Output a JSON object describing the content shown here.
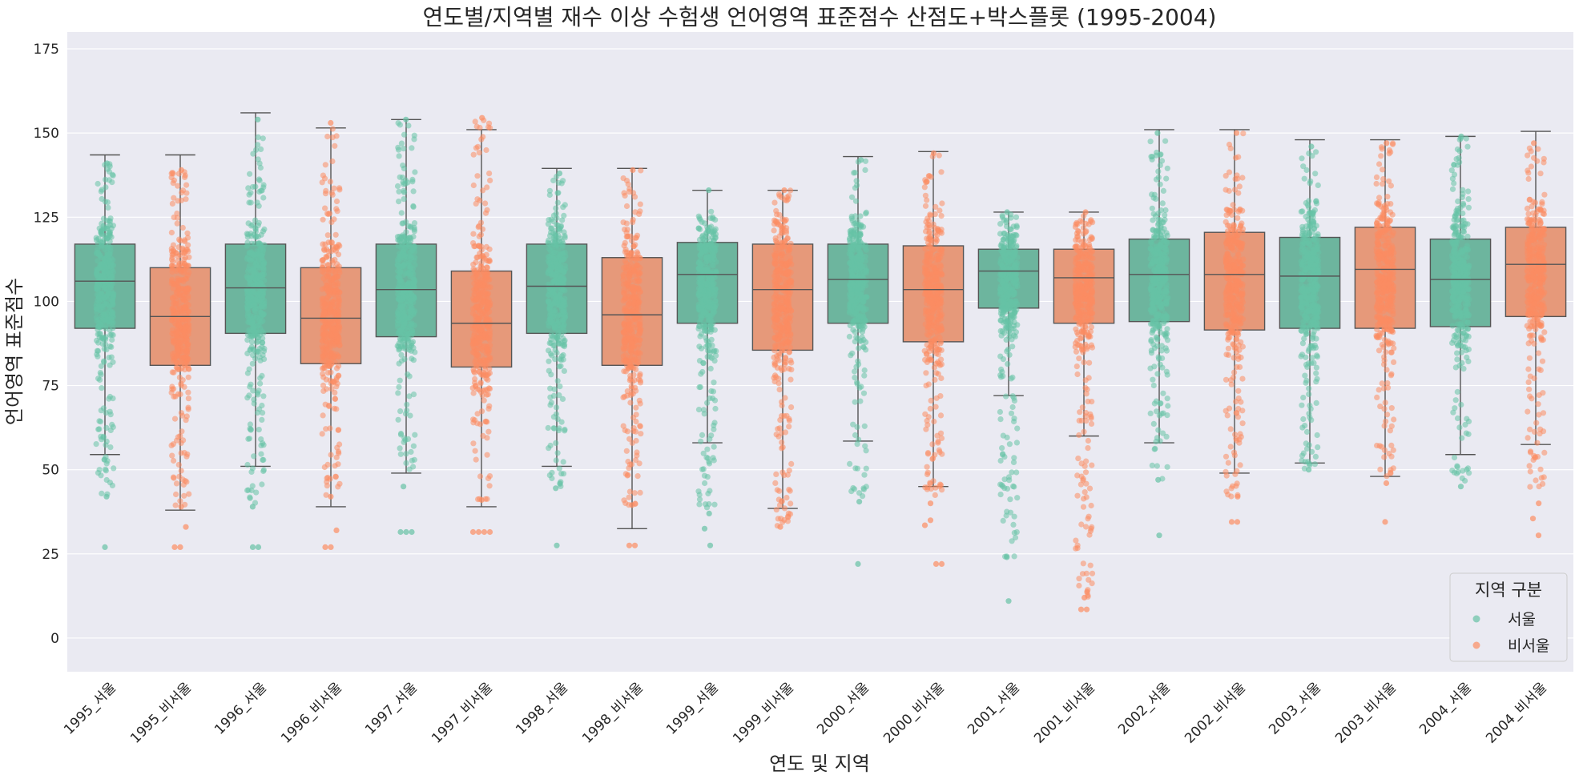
{
  "chart_data": {
    "type": "box+strip",
    "title": "연도별/지역별 재수 이상 수험생 언어영역 표준점수 산점도+박스플롯 (1995-2004)",
    "xlabel": "연도 및 지역",
    "ylabel": "언어영역 표준점수",
    "ylim": [
      -10,
      180
    ],
    "yticks": [
      0,
      25,
      50,
      75,
      100,
      125,
      150,
      175
    ],
    "grid": true,
    "legend": {
      "title": "지역 구분",
      "placement": "bottom-right",
      "entries": [
        {
          "name": "서울",
          "color": "#66c2a5"
        },
        {
          "name": "비서울",
          "color": "#fc8d62"
        }
      ]
    },
    "box_colors": {
      "서울": "#6db59e",
      "비서울": "#e6997a"
    },
    "categories": [
      {
        "label": "1995_서울",
        "region": "서울",
        "whisker_low": 54.5,
        "q1": 92,
        "median": 106,
        "q3": 117,
        "whisker_high": 143.5,
        "points_min": 42,
        "points_max": 141,
        "outliers": [
          27
        ]
      },
      {
        "label": "1995_비서울",
        "region": "비서울",
        "whisker_low": 38,
        "q1": 81,
        "median": 95.5,
        "q3": 110,
        "whisker_high": 143.5,
        "points_min": 39,
        "points_max": 139,
        "outliers": [
          27,
          27,
          33
        ]
      },
      {
        "label": "1996_서울",
        "region": "서울",
        "whisker_low": 51,
        "q1": 90.5,
        "median": 104,
        "q3": 117,
        "whisker_high": 156,
        "points_min": 39,
        "points_max": 154,
        "outliers": [
          27,
          27
        ]
      },
      {
        "label": "1996_비서울",
        "region": "비서울",
        "whisker_low": 39,
        "q1": 81.5,
        "median": 95,
        "q3": 110,
        "whisker_high": 151.5,
        "points_min": 42,
        "points_max": 153,
        "outliers": [
          27,
          27,
          32
        ]
      },
      {
        "label": "1997_서울",
        "region": "서울",
        "whisker_low": 49,
        "q1": 89.5,
        "median": 103.5,
        "q3": 117,
        "whisker_high": 154,
        "points_min": 45,
        "points_max": 154,
        "outliers": [
          31.5,
          31.5,
          31.5
        ]
      },
      {
        "label": "1997_비서울",
        "region": "비서울",
        "whisker_low": 39,
        "q1": 80.5,
        "median": 93.5,
        "q3": 109,
        "whisker_high": 151,
        "points_min": 41,
        "points_max": 154.5,
        "outliers": [
          31.5,
          31.5,
          31.5,
          31.5
        ]
      },
      {
        "label": "1998_서울",
        "region": "서울",
        "whisker_low": 51,
        "q1": 90.5,
        "median": 104.5,
        "q3": 117,
        "whisker_high": 139.5,
        "points_min": 44.5,
        "points_max": 138,
        "outliers": [
          27.5
        ]
      },
      {
        "label": "1998_비서울",
        "region": "비서울",
        "whisker_low": 32.5,
        "q1": 81,
        "median": 96,
        "q3": 113,
        "whisker_high": 139.5,
        "points_min": 39.5,
        "points_max": 139,
        "outliers": [
          27.5,
          27.5
        ]
      },
      {
        "label": "1999_서울",
        "region": "서울",
        "whisker_low": 58,
        "q1": 93.5,
        "median": 108,
        "q3": 117.5,
        "whisker_high": 133,
        "points_min": 37,
        "points_max": 133,
        "outliers": [
          32.5,
          27.5
        ]
      },
      {
        "label": "1999_비서울",
        "region": "비서울",
        "whisker_low": 38.5,
        "q1": 85.5,
        "median": 103.5,
        "q3": 117,
        "whisker_high": 133,
        "points_min": 33,
        "points_max": 133,
        "outliers": []
      },
      {
        "label": "2000_서울",
        "region": "서울",
        "whisker_low": 58.5,
        "q1": 93.5,
        "median": 106.5,
        "q3": 117,
        "whisker_high": 143,
        "points_min": 40.5,
        "points_max": 142,
        "outliers": [
          22
        ]
      },
      {
        "label": "2000_비서울",
        "region": "비서울",
        "whisker_low": 45,
        "q1": 88,
        "median": 103.5,
        "q3": 116.5,
        "whisker_high": 144.5,
        "points_min": 40,
        "points_max": 144,
        "outliers": [
          33.5,
          35,
          22,
          22
        ]
      },
      {
        "label": "2001_서울",
        "region": "서울",
        "whisker_low": 72,
        "q1": 98,
        "median": 109,
        "q3": 115.5,
        "whisker_high": 126.5,
        "points_min": 24,
        "points_max": 126.5,
        "outliers": [
          11
        ]
      },
      {
        "label": "2001_비서울",
        "region": "비서울",
        "whisker_low": 60,
        "q1": 93.5,
        "median": 107,
        "q3": 115.5,
        "whisker_high": 126.5,
        "points_min": 12,
        "points_max": 126.5,
        "outliers": [
          8.5,
          8.5
        ]
      },
      {
        "label": "2002_서울",
        "region": "서울",
        "whisker_low": 58,
        "q1": 94,
        "median": 108,
        "q3": 118.5,
        "whisker_high": 151,
        "points_min": 47,
        "points_max": 150,
        "outliers": [
          30.5
        ]
      },
      {
        "label": "2002_비서울",
        "region": "비서울",
        "whisker_low": 49,
        "q1": 91.5,
        "median": 108,
        "q3": 120.5,
        "whisker_high": 151,
        "points_min": 42,
        "points_max": 150,
        "outliers": [
          34.5,
          34.5
        ]
      },
      {
        "label": "2003_서울",
        "region": "서울",
        "whisker_low": 52,
        "q1": 92,
        "median": 107.5,
        "q3": 119,
        "whisker_high": 148,
        "points_min": 50,
        "points_max": 146,
        "outliers": []
      },
      {
        "label": "2003_비서울",
        "region": "비서울",
        "whisker_low": 48,
        "q1": 92,
        "median": 109.5,
        "q3": 122,
        "whisker_high": 148,
        "points_min": 46,
        "points_max": 147,
        "outliers": [
          34.5
        ]
      },
      {
        "label": "2004_서울",
        "region": "서울",
        "whisker_low": 54.5,
        "q1": 92.5,
        "median": 106.5,
        "q3": 118.5,
        "whisker_high": 149,
        "points_min": 45,
        "points_max": 149,
        "outliers": []
      },
      {
        "label": "2004_비서울",
        "region": "비서울",
        "whisker_low": 57.5,
        "q1": 95.5,
        "median": 111,
        "q3": 122,
        "whisker_high": 150.5,
        "points_min": 40,
        "points_max": 147,
        "outliers": [
          35.5,
          30.5
        ]
      }
    ]
  }
}
